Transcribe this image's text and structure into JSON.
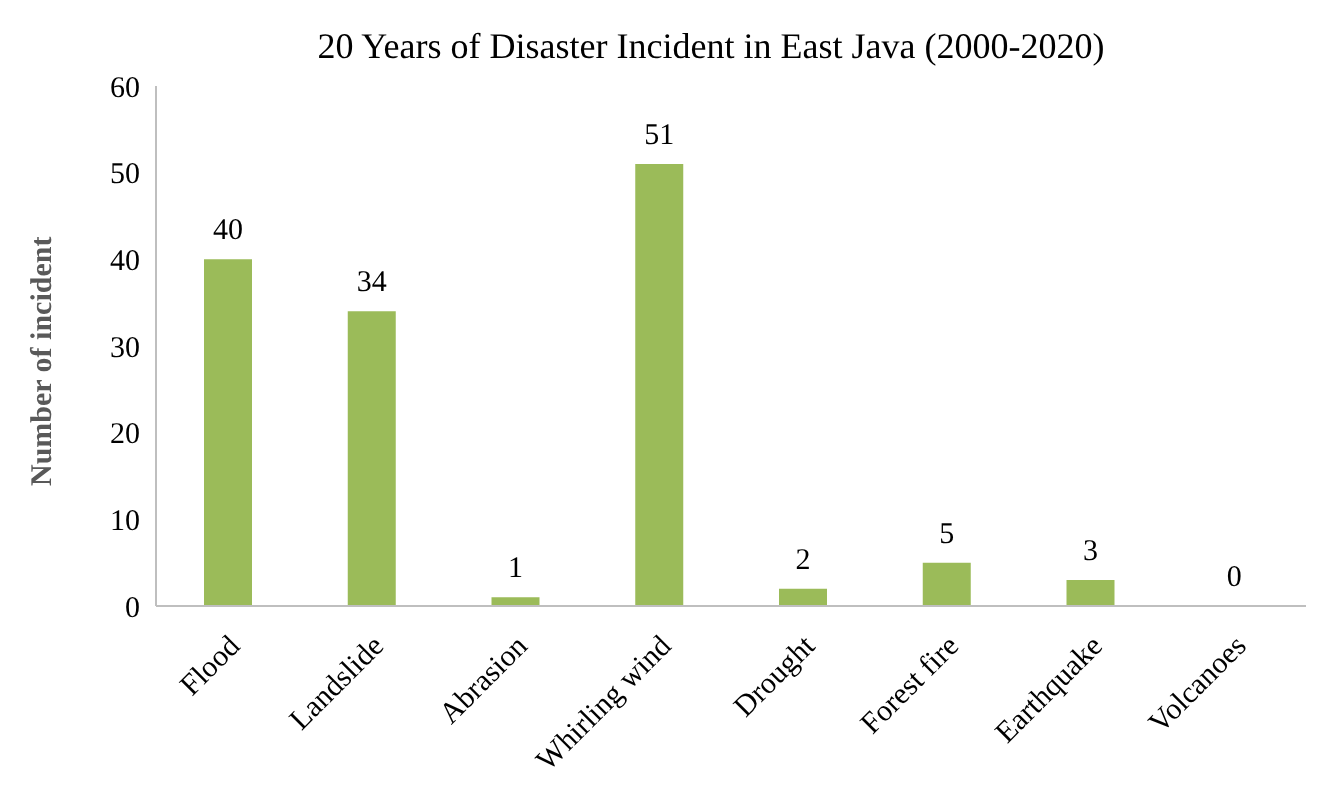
{
  "chart_data": {
    "type": "bar",
    "title": "20 Years of Disaster Incident in East Java  (2000-2020)",
    "ylabel": "Number of incident",
    "categories": [
      "Flood",
      "Landslide",
      "Abrasion",
      "Whirling wind",
      "Drought",
      "Forest fire",
      "Earthquake",
      "Volcanoes"
    ],
    "values": [
      40,
      34,
      1,
      51,
      2,
      5,
      3,
      0
    ],
    "color": "#9bbb59",
    "ylim": [
      0,
      60
    ],
    "yticks": [
      0,
      10,
      20,
      30,
      40,
      50,
      60
    ],
    "grid": false,
    "data_labels": true
  }
}
